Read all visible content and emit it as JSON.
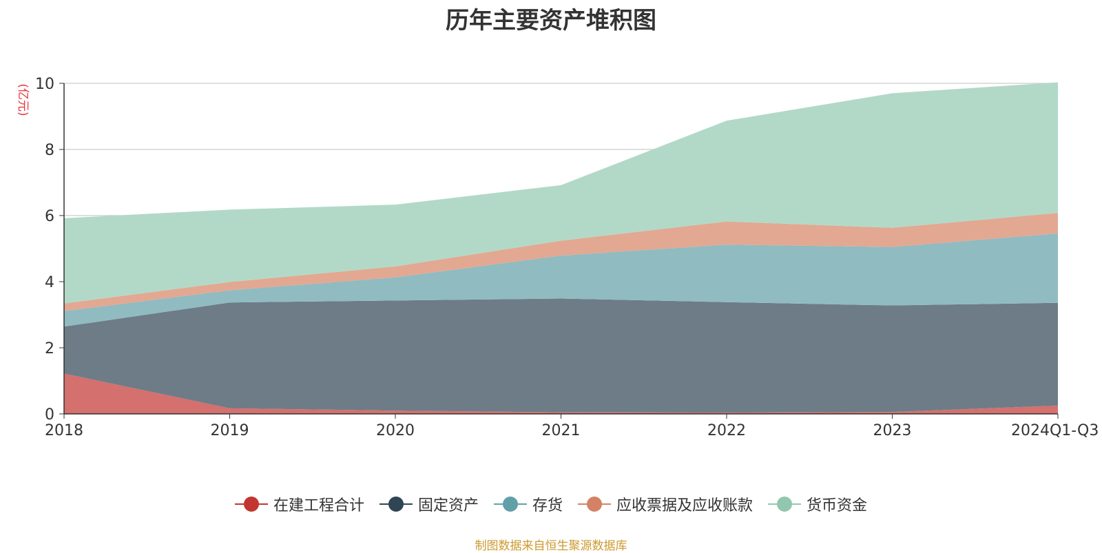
{
  "chart_data": {
    "type": "area",
    "stacked": true,
    "title": "历年主要资产堆积图",
    "ylabel": "(亿元)",
    "categories": [
      "2018",
      "2019",
      "2020",
      "2021",
      "2022",
      "2023",
      "2024Q1-Q3"
    ],
    "ylim": [
      0,
      10
    ],
    "yticks": [
      "0",
      "2",
      "4",
      "6",
      "8",
      "10"
    ],
    "grid": true,
    "legend_position": "bottom",
    "series": [
      {
        "name": "在建工程合计",
        "color": "#c23531",
        "fill": "#d4706d",
        "values": [
          1.22,
          0.17,
          0.1,
          0.05,
          0.04,
          0.06,
          0.25
        ]
      },
      {
        "name": "固定资产",
        "color": "#2f4554",
        "fill": "#6d7c87",
        "values": [
          1.42,
          3.2,
          3.33,
          3.44,
          3.34,
          3.22,
          3.11
        ]
      },
      {
        "name": "存货",
        "color": "#61a0a8",
        "fill": "#90bbc1",
        "values": [
          0.47,
          0.37,
          0.7,
          1.3,
          1.74,
          1.77,
          2.1
        ]
      },
      {
        "name": "应收票据及应收账款",
        "color": "#d48265",
        "fill": "#e2a892",
        "values": [
          0.23,
          0.25,
          0.33,
          0.45,
          0.7,
          0.58,
          0.62
        ]
      },
      {
        "name": "货币资金",
        "color": "#91c7ae",
        "fill": "#b2d9c7",
        "values": [
          2.58,
          2.19,
          1.87,
          1.68,
          3.05,
          4.07,
          3.95
        ]
      }
    ]
  },
  "source_note": "制图数据来自恒生聚源数据库"
}
